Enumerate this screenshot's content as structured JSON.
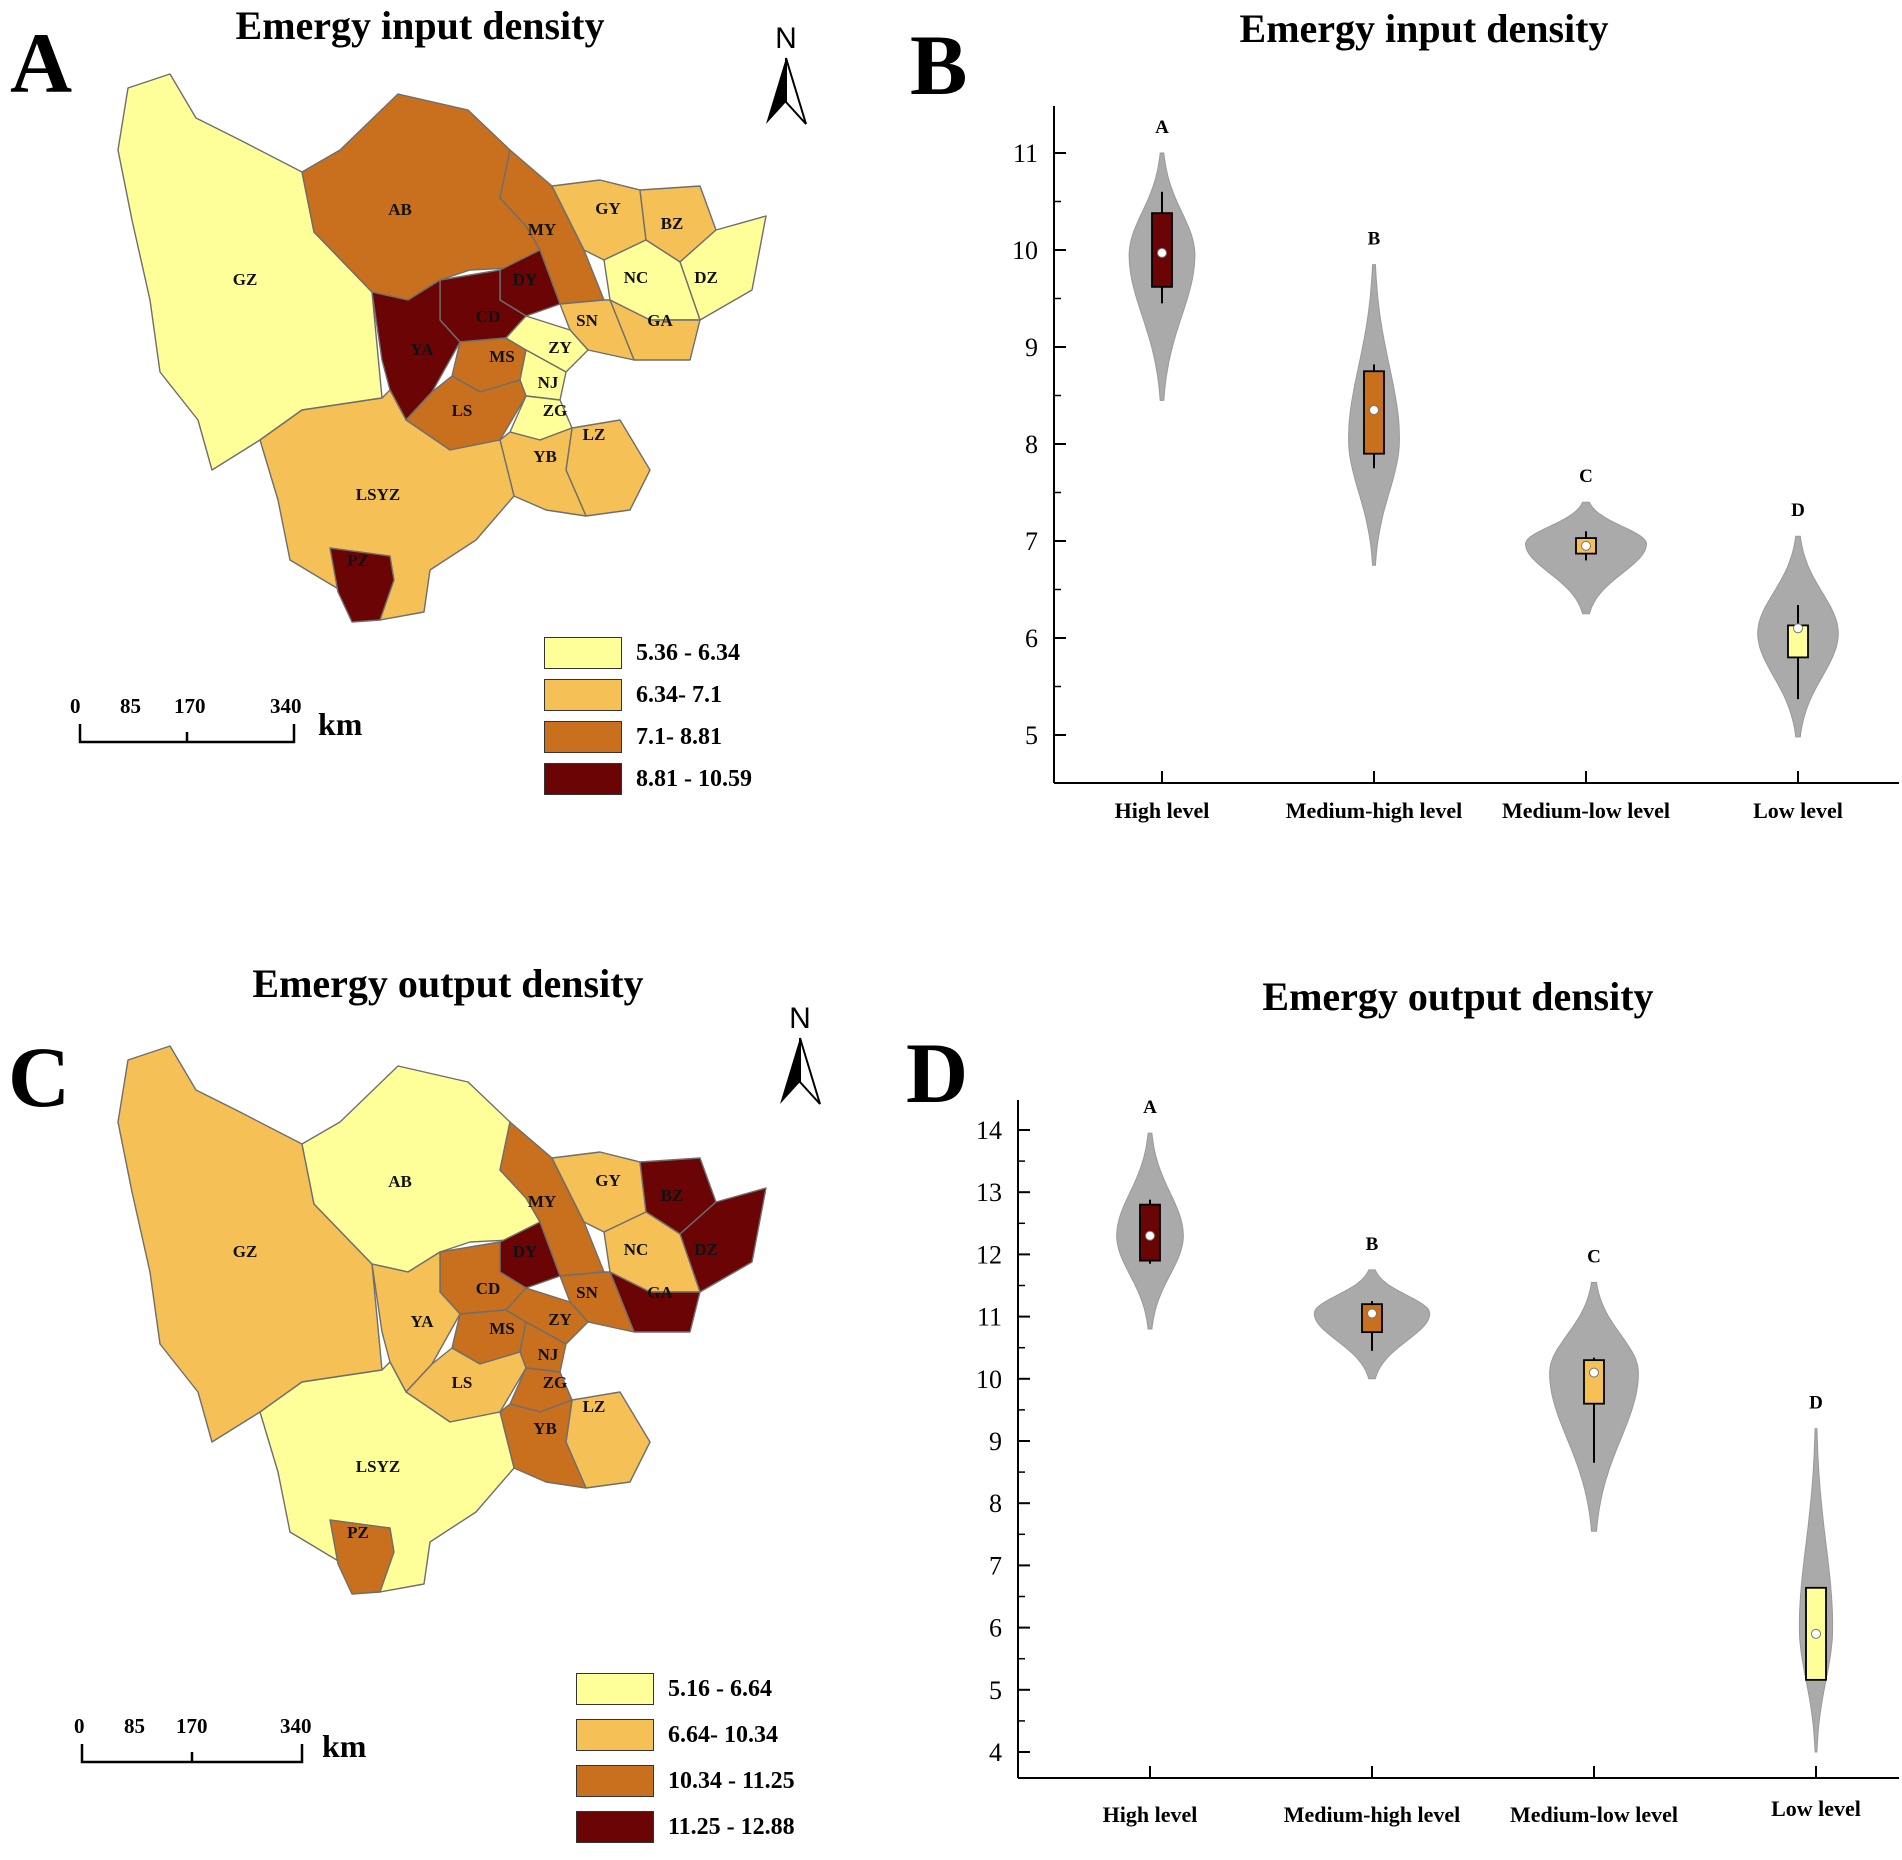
{
  "panels": [
    {
      "letter": "A",
      "title": "Emergy input density",
      "legend": [
        {
          "label": "5.36 - 6.34",
          "color": "#ffff99"
        },
        {
          "label": "6.34- 7.1",
          "color": "#f5c055"
        },
        {
          "label": "7.1- 8.81",
          "color": "#c8701e"
        },
        {
          "label": "8.81 - 10.59",
          "color": "#6b0505"
        }
      ],
      "scale": {
        "ticks": [
          "0",
          "85",
          "170",
          "340"
        ],
        "unit": "km"
      },
      "north": "N",
      "regions": [
        {
          "code": "GZ",
          "cls": 0
        },
        {
          "code": "AB",
          "cls": 2
        },
        {
          "code": "MY",
          "cls": 2
        },
        {
          "code": "GY",
          "cls": 1
        },
        {
          "code": "BZ",
          "cls": 1
        },
        {
          "code": "DZ",
          "cls": 0
        },
        {
          "code": "NC",
          "cls": 0
        },
        {
          "code": "GA",
          "cls": 1
        },
        {
          "code": "DY",
          "cls": 3
        },
        {
          "code": "CD",
          "cls": 3
        },
        {
          "code": "SN",
          "cls": 1
        },
        {
          "code": "YA",
          "cls": 3
        },
        {
          "code": "MS",
          "cls": 2
        },
        {
          "code": "ZY",
          "cls": 0
        },
        {
          "code": "NJ",
          "cls": 0
        },
        {
          "code": "LS",
          "cls": 2
        },
        {
          "code": "ZG",
          "cls": 0
        },
        {
          "code": "LZ",
          "cls": 1
        },
        {
          "code": "YB",
          "cls": 1
        },
        {
          "code": "LSYZ",
          "cls": 1
        },
        {
          "code": "PZ",
          "cls": 3
        }
      ]
    },
    {
      "letter": "C",
      "title": "Emergy output density",
      "legend": [
        {
          "label": "5.16 - 6.64",
          "color": "#ffff99"
        },
        {
          "label": "6.64- 10.34",
          "color": "#f5c055"
        },
        {
          "label": "10.34 - 11.25",
          "color": "#c8701e"
        },
        {
          "label": "11.25 - 12.88",
          "color": "#6b0505"
        }
      ],
      "scale": {
        "ticks": [
          "0",
          "85",
          "170",
          "340"
        ],
        "unit": "km"
      },
      "north": "N",
      "regions": [
        {
          "code": "GZ",
          "cls": 1
        },
        {
          "code": "AB",
          "cls": 0
        },
        {
          "code": "MY",
          "cls": 2
        },
        {
          "code": "GY",
          "cls": 1
        },
        {
          "code": "BZ",
          "cls": 3
        },
        {
          "code": "DZ",
          "cls": 3
        },
        {
          "code": "NC",
          "cls": 1
        },
        {
          "code": "GA",
          "cls": 3
        },
        {
          "code": "DY",
          "cls": 3
        },
        {
          "code": "CD",
          "cls": 2
        },
        {
          "code": "SN",
          "cls": 2
        },
        {
          "code": "YA",
          "cls": 1
        },
        {
          "code": "MS",
          "cls": 2
        },
        {
          "code": "ZY",
          "cls": 2
        },
        {
          "code": "NJ",
          "cls": 2
        },
        {
          "code": "LS",
          "cls": 1
        },
        {
          "code": "ZG",
          "cls": 2
        },
        {
          "code": "LZ",
          "cls": 1
        },
        {
          "code": "YB",
          "cls": 2
        },
        {
          "code": "LSYZ",
          "cls": 0
        },
        {
          "code": "PZ",
          "cls": 2
        }
      ]
    }
  ],
  "chart_data": [
    {
      "letter": "B",
      "type": "violin",
      "title": "Emergy input density",
      "categories": [
        "High level",
        "Medium-high level",
        "Medium-low level",
        "Low level"
      ],
      "group_letters": [
        "A",
        "B",
        "C",
        "D"
      ],
      "ylim": [
        5,
        11
      ],
      "yticks": [
        5,
        6,
        7,
        8,
        9,
        10,
        11
      ],
      "violin_color": "#aaaaaa",
      "box_colors": [
        "#6b0505",
        "#c8701e",
        "#f5c055",
        "#ffff99"
      ],
      "violins": [
        {
          "min": 8.45,
          "max": 11.0,
          "mode": 9.95,
          "halfwidth": 0.31
        },
        {
          "min": 6.75,
          "max": 9.85,
          "mode": 8.05,
          "halfwidth": 0.24
        },
        {
          "min": 6.25,
          "max": 7.4,
          "mode": 6.97,
          "halfwidth": 0.57
        },
        {
          "min": 4.98,
          "max": 7.05,
          "mode": 6.05,
          "halfwidth": 0.38
        }
      ],
      "boxes": [
        {
          "whisker_low": 9.45,
          "q1": 9.62,
          "median": 9.97,
          "q3": 10.38,
          "whisker_high": 10.6
        },
        {
          "whisker_low": 7.75,
          "q1": 7.9,
          "median": 8.35,
          "q3": 8.75,
          "whisker_high": 8.82
        },
        {
          "whisker_low": 6.8,
          "q1": 6.87,
          "median": 6.95,
          "q3": 7.03,
          "whisker_high": 7.1
        },
        {
          "whisker_low": 5.37,
          "q1": 5.8,
          "median": 6.1,
          "q3": 6.13,
          "whisker_high": 6.34
        }
      ]
    },
    {
      "letter": "D",
      "type": "violin",
      "title": "Emergy output density",
      "categories": [
        "High level",
        "Medium-high level",
        "Medium-low level",
        "Low level"
      ],
      "group_letters": [
        "A",
        "B",
        "C",
        "D"
      ],
      "ylim": [
        4,
        14
      ],
      "yticks": [
        4,
        5,
        6,
        7,
        8,
        9,
        10,
        11,
        12,
        13,
        14
      ],
      "violin_color": "#aaaaaa",
      "box_colors": [
        "#6b0505",
        "#c8701e",
        "#f5c055",
        "#ffff99"
      ],
      "violins": [
        {
          "min": 10.8,
          "max": 13.95,
          "mode": 12.3,
          "halfwidth": 0.3
        },
        {
          "min": 10.0,
          "max": 11.75,
          "mode": 11.05,
          "halfwidth": 0.52
        },
        {
          "min": 7.55,
          "max": 11.55,
          "mode": 10.1,
          "halfwidth": 0.4
        },
        {
          "min": 4.0,
          "max": 9.2,
          "mode": 6.0,
          "halfwidth": 0.15
        }
      ],
      "boxes": [
        {
          "whisker_low": 11.85,
          "q1": 11.9,
          "median": 12.3,
          "q3": 12.8,
          "whisker_high": 12.88
        },
        {
          "whisker_low": 10.45,
          "q1": 10.75,
          "median": 11.05,
          "q3": 11.2,
          "whisker_high": 11.25
        },
        {
          "whisker_low": 8.65,
          "q1": 9.6,
          "median": 10.1,
          "q3": 10.3,
          "whisker_high": 10.34
        },
        {
          "whisker_low": 5.16,
          "q1": 5.16,
          "median": 5.9,
          "q3": 6.64,
          "whisker_high": 6.64
        }
      ]
    }
  ]
}
